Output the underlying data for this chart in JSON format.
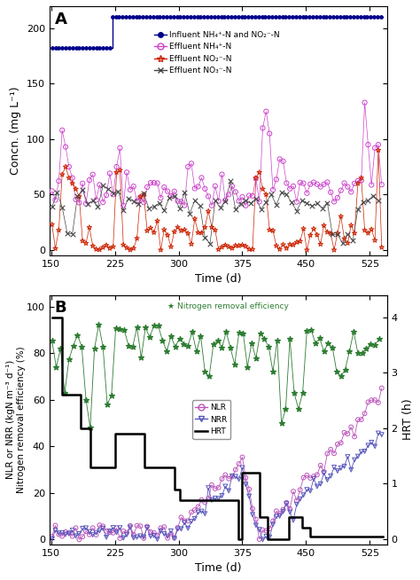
{
  "panel_A": {
    "title": "A",
    "xlabel": "Time (d)",
    "ylabel": "Concn. (mg L⁻¹)",
    "xlim": [
      148,
      545
    ],
    "ylim": [
      -5,
      220
    ],
    "xticks": [
      150,
      225,
      300,
      375,
      450,
      525
    ],
    "yticks": [
      0,
      50,
      100,
      150,
      200
    ],
    "influent_color": "#00008B",
    "effluent_NH4_color": "#CC44CC",
    "effluent_NO2_color": "#CC2200",
    "effluent_NO3_color": "#444444",
    "legend_labels": [
      "Influent NH₄⁺-N and NO₂⁻-N",
      "Effluent NH₄⁺-N",
      "Effluent NO₂⁻-N",
      "Effluent NO₃⁻-N"
    ]
  },
  "panel_B": {
    "title": "B",
    "xlabel": "Time (d)",
    "ylabel_left": "NLR or NRR (kgN m⁻³ d⁻¹)\nNitrogen removal efficiency (%)",
    "ylabel_right": "HRT (h)",
    "xlim": [
      148,
      545
    ],
    "ylim_left": [
      -2,
      105
    ],
    "ylim_right": [
      -0.09,
      4.4
    ],
    "xticks": [
      150,
      225,
      300,
      375,
      450,
      525
    ],
    "yticks_left": [
      0,
      20,
      40,
      60,
      80,
      100
    ],
    "yticks_right": [
      0,
      1,
      2,
      3,
      4
    ],
    "NRE_color": "#2E7D32",
    "NLR_color": "#BB55BB",
    "NRR_color": "#5555BB",
    "HRT_color": "#000000",
    "legend_labels": [
      "NLR",
      "NRR",
      "HRT"
    ]
  }
}
